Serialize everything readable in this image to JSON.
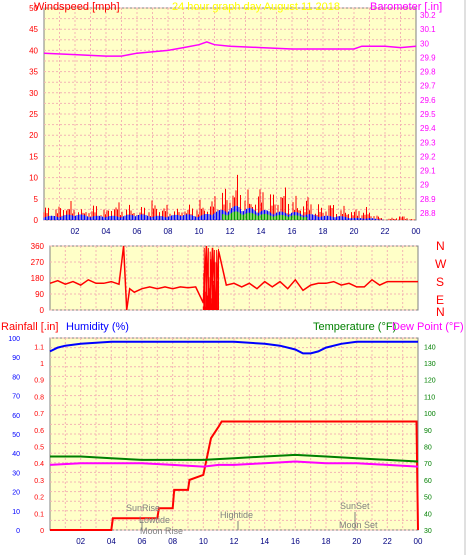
{
  "header": {
    "windspeed_label": "Windspeed [mph]",
    "graph_title": "24 hour graph day   August 11 2018",
    "barometer_label": "Barometer [.in]"
  },
  "compass": [
    "N",
    "W",
    "S",
    "E",
    "N"
  ],
  "lower_header": {
    "rainfall_label": "Rainfall [.in]",
    "humidity_label": "Humidity (%)",
    "temperature_label": "Temperature (°F)",
    "dewpoint_label": "Dew Point (°F)"
  },
  "annotations": {
    "sunrise": "SunRise",
    "lowtide": "Lowtide",
    "moonrise": "Moon Rise",
    "hightide": "Hightide",
    "sunset": "SunSet",
    "moonset": "Moon Set"
  },
  "colors": {
    "plot_bg": "#ffffc8",
    "grid": "#f4b4b4",
    "wind": "#ff0000",
    "gust": "#0000ff",
    "wind_low": "#00a000",
    "barometer": "#ff00ff",
    "direction": "#ff0000",
    "humidity": "#0000ff",
    "rain": "#ff0000",
    "temperature": "#008000",
    "dewpoint": "#ff00ff",
    "axis_text_left": "#ff0000",
    "axis_text_right": "#ff00ff",
    "humidity_text": "#0000ff",
    "temp_text": "#008000",
    "title_text": "#ffff00"
  },
  "chart_data": [
    {
      "type": "line",
      "title": "24 hour graph day   August 11 2018",
      "xlabel": "",
      "ylabel": "Windspeed [mph]",
      "y2label": "Barometer [.in]",
      "x_ticks": [
        "02",
        "04",
        "06",
        "08",
        "10",
        "12",
        "14",
        "16",
        "18",
        "20",
        "22",
        "00"
      ],
      "ylim": [
        0,
        50
      ],
      "y_ticks": [
        0,
        5,
        10,
        15,
        20,
        25,
        30,
        35,
        40,
        45,
        50
      ],
      "y2lim": [
        28.75,
        30.25
      ],
      "y2_ticks": [
        "28.8",
        "28.9",
        "29",
        "29.1",
        "29.2",
        "29.3",
        "29.4",
        "29.5",
        "29.6",
        "29.7",
        "29.8",
        "29.9",
        "30",
        "30.1",
        "30.2"
      ],
      "series": [
        {
          "name": "Barometer [.in]",
          "x": [
            0,
            2,
            4,
            5,
            6,
            8,
            9,
            10,
            10.5,
            11,
            12,
            14,
            16,
            18,
            20,
            20.5,
            22,
            23,
            24
          ],
          "values": [
            29.93,
            29.92,
            29.91,
            29.91,
            29.93,
            29.95,
            29.97,
            29.99,
            30.01,
            29.99,
            29.98,
            29.97,
            29.96,
            29.96,
            29.96,
            29.98,
            29.98,
            29.97,
            29.98
          ]
        },
        {
          "name": "Windspeed [mph]",
          "x": [
            0,
            0.5,
            1,
            1.5,
            2,
            2.5,
            3,
            3.5,
            4,
            4.5,
            5,
            5.5,
            6,
            6.5,
            7,
            7.5,
            8,
            8.5,
            9,
            9.5,
            10,
            10.5,
            11,
            11.5,
            12,
            12.5,
            13,
            13.5,
            14,
            14.5,
            15,
            15.5,
            16,
            16.5,
            17,
            17.5,
            18,
            18.5,
            19,
            19.5,
            20,
            20.5,
            21,
            21.5,
            22,
            23,
            24
          ],
          "values": [
            3,
            2,
            3,
            4,
            3,
            2,
            3,
            3,
            2,
            4,
            3,
            3,
            2,
            3,
            4,
            3,
            3,
            2,
            3,
            3,
            4,
            3,
            5,
            6,
            7,
            9,
            6,
            5,
            7,
            5,
            6,
            7,
            5,
            4,
            5,
            3,
            3,
            4,
            2,
            3,
            2,
            3,
            2,
            1,
            0,
            1,
            0
          ]
        },
        {
          "name": "Gust",
          "x": [
            0,
            1,
            2,
            3,
            4,
            5,
            6,
            7,
            8,
            9,
            10,
            11,
            12,
            12.5,
            13,
            14,
            15,
            16,
            17,
            18,
            19,
            20,
            21,
            22,
            23,
            24
          ],
          "values": [
            1,
            1,
            1.5,
            1,
            1,
            1,
            1.5,
            1,
            1,
            1.5,
            1,
            2,
            3,
            3.5,
            3,
            2.5,
            2,
            2,
            1.5,
            1,
            1,
            0.5,
            0.5,
            0,
            0,
            0
          ]
        }
      ]
    },
    {
      "type": "line",
      "title": "",
      "ylabel": "",
      "y2label": "",
      "x_ticks": [],
      "ylim": [
        0,
        360
      ],
      "y_ticks": [
        0,
        90,
        180,
        270,
        360
      ],
      "series": [
        {
          "name": "",
          "x": [
            0,
            0.5,
            1,
            1.5,
            2,
            2.5,
            3,
            3.5,
            4,
            4.5,
            4.8,
            5,
            5.2,
            5.5,
            6,
            6.5,
            7,
            7.5,
            8,
            8.5,
            9,
            9.5,
            10,
            10.2,
            10.4,
            10.6,
            10.8,
            11,
            11.5,
            12,
            12.5,
            13,
            13.5,
            14,
            14.5,
            15,
            15.5,
            16,
            16.5,
            17,
            17.5,
            18,
            18.5,
            19,
            19.5,
            20,
            20.5,
            21,
            21.5,
            22,
            23,
            24
          ],
          "values": [
            150,
            165,
            145,
            160,
            140,
            170,
            150,
            150,
            160,
            145,
            360,
            0,
            120,
            100,
            120,
            130,
            120,
            130,
            120,
            130,
            125,
            130,
            40,
            360,
            0,
            350,
            20,
            330,
            140,
            150,
            130,
            150,
            120,
            160,
            130,
            160,
            120,
            170,
            110,
            140,
            150,
            150,
            160,
            140,
            150,
            130,
            130,
            170,
            140,
            160,
            160,
            160
          ]
        }
      ]
    },
    {
      "type": "line",
      "title": "",
      "ylabel": "Rainfall [.in]",
      "y2label": "Temperature (°F)",
      "x_ticks": [
        "02",
        "04",
        "06",
        "08",
        "10",
        "12",
        "14",
        "16",
        "18",
        "20",
        "22",
        "00"
      ],
      "ylim": [
        0,
        100
      ],
      "y_ticks": [
        0,
        10,
        20,
        30,
        40,
        50,
        60,
        70,
        80,
        90,
        100
      ],
      "y_mid_ticks": [
        "0",
        "0.1",
        "0.2",
        "0.3",
        "0.4",
        "0.5",
        "0.6",
        "0.7",
        "0.8",
        "0.9",
        "1",
        "1.1"
      ],
      "y2lim": [
        30,
        145
      ],
      "y2_ticks": [
        30,
        40,
        50,
        60,
        70,
        80,
        90,
        100,
        110,
        120,
        130,
        140
      ],
      "series": [
        {
          "name": "Humidity (%)",
          "x": [
            0,
            0.5,
            1,
            2,
            4,
            6,
            8,
            10,
            12,
            14,
            15,
            16,
            16.5,
            17,
            17.5,
            18,
            19,
            20,
            22,
            24
          ],
          "values": [
            93,
            95,
            96,
            97,
            98,
            98,
            98,
            98,
            98,
            97,
            96,
            94,
            92,
            92,
            93,
            95,
            97,
            98,
            98,
            98
          ]
        },
        {
          "name": "Rainfall [.in]",
          "x": [
            0,
            4,
            4.1,
            6,
            7,
            7.1,
            8,
            8.1,
            9,
            9.1,
            10,
            10.5,
            11,
            11.2,
            23,
            23.9,
            24
          ],
          "values": [
            0,
            0,
            0.07,
            0.07,
            0.07,
            0.13,
            0.13,
            0.24,
            0.24,
            0.3,
            0.33,
            0.55,
            0.62,
            0.65,
            0.65,
            0.65,
            0
          ]
        },
        {
          "name": "Temperature (°F)",
          "x": [
            0,
            2,
            4,
            6,
            8,
            10,
            12,
            14,
            16,
            18,
            20,
            22,
            24
          ],
          "values": [
            74,
            74,
            73,
            72,
            72,
            72,
            73,
            74,
            75,
            74,
            73,
            72,
            71
          ]
        },
        {
          "name": "Dew Point (°F)",
          "x": [
            0,
            2,
            4,
            6,
            8,
            10,
            11,
            12,
            14,
            16,
            18,
            20,
            22,
            24
          ],
          "values": [
            69,
            70,
            70,
            70,
            69,
            68,
            69,
            69,
            70,
            71,
            70,
            70,
            69,
            68
          ]
        }
      ]
    }
  ]
}
